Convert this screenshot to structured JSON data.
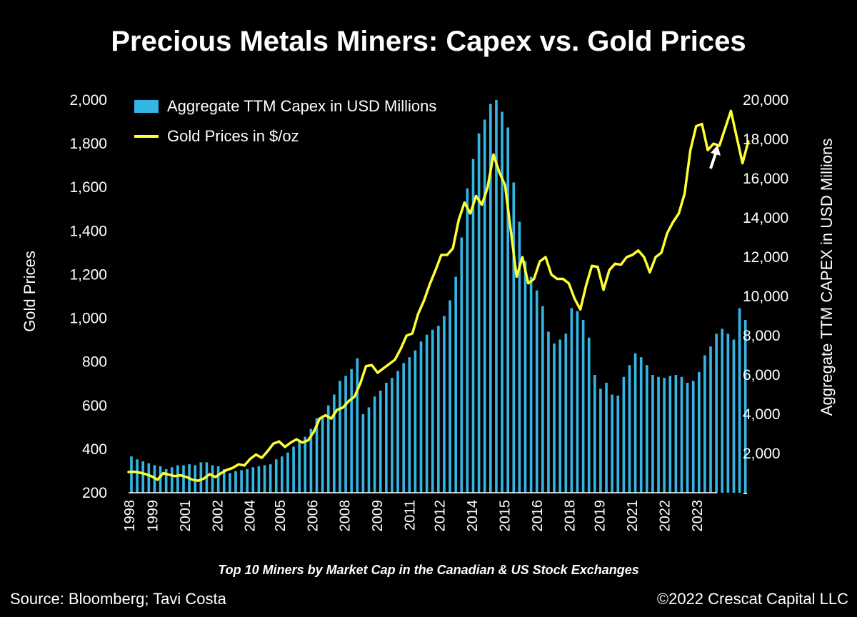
{
  "chart_data": {
    "type": "bar",
    "title": "Precious Metals Miners: Capex vs. Gold Prices",
    "subtitle": "Top 10 Miners by Market Cap in the Canadian & US Stock Exchanges",
    "source": "Source: Bloomberg; Tavi Costa",
    "copyright": "©2022 Crescat Capital LLC",
    "y_left_label": "Gold Prices",
    "y_right_label": "Aggregate TTM CAPEX in USD Millions",
    "y_left_ticks": [
      "2,000",
      "1,800",
      "1,600",
      "1,400",
      "1,200",
      "1,000",
      "800",
      "600",
      "400",
      "200"
    ],
    "y_right_ticks": [
      "20,000",
      "18,000",
      "16,000",
      "14,000",
      "12,000",
      "10,000",
      "8,000",
      "6,000",
      "4,000",
      "2,000",
      "-"
    ],
    "y_left_range": [
      200,
      2000
    ],
    "y_right_range": [
      0,
      20000
    ],
    "x_range": [
      1998,
      2023.4
    ],
    "x_ticks": [
      {
        "label": "1998",
        "t": 1998.0
      },
      {
        "label": "1999",
        "t": 1999.0
      },
      {
        "label": "2001",
        "t": 2000.4
      },
      {
        "label": "2002",
        "t": 2001.8
      },
      {
        "label": "2004",
        "t": 2003.2
      },
      {
        "label": "2005",
        "t": 2004.5
      },
      {
        "label": "2006",
        "t": 2005.9
      },
      {
        "label": "2008",
        "t": 2007.3
      },
      {
        "label": "2009",
        "t": 2008.7
      },
      {
        "label": "2011",
        "t": 2010.1
      },
      {
        "label": "2012",
        "t": 2011.4
      },
      {
        "label": "2014",
        "t": 2012.8
      },
      {
        "label": "2015",
        "t": 2014.2
      },
      {
        "label": "2016",
        "t": 2015.6
      },
      {
        "label": "2018",
        "t": 2017.0
      },
      {
        "label": "2019",
        "t": 2018.3
      },
      {
        "label": "2021",
        "t": 2019.7
      },
      {
        "label": "2022",
        "t": 2021.1
      },
      {
        "label": "2023",
        "t": 2022.5
      }
    ],
    "series": [
      {
        "name": "Aggregate TTM Capex in USD Millions",
        "axis": "right",
        "kind": "bar",
        "color": "#33b5e5",
        "t0": 1998.0,
        "step": 0.25,
        "values": [
          1850,
          1700,
          1600,
          1500,
          1400,
          1350,
          1200,
          1300,
          1400,
          1400,
          1450,
          1400,
          1550,
          1550,
          1400,
          1350,
          1200,
          1000,
          1100,
          1150,
          1200,
          1300,
          1350,
          1400,
          1450,
          1700,
          1850,
          2050,
          2350,
          2600,
          2850,
          3250,
          3800,
          3850,
          4450,
          5000,
          5700,
          5950,
          6300,
          6850,
          4000,
          4350,
          4900,
          5200,
          5600,
          5850,
          6200,
          6600,
          6900,
          7250,
          7700,
          8050,
          8300,
          8500,
          9000,
          9800,
          11000,
          13000,
          15500,
          17000,
          18300,
          19000,
          19800,
          20000,
          19400,
          18600,
          15800,
          13800,
          11800,
          11000,
          10300,
          9500,
          8200,
          7600,
          7800,
          8100,
          9400,
          9250,
          8800,
          7900,
          6000,
          5300,
          5600,
          5000,
          4950,
          5900,
          6500,
          7100,
          6900,
          6500,
          6000,
          5900,
          5850,
          5950,
          6000,
          5900,
          5600,
          5700,
          6150,
          7000,
          7450,
          8100,
          8350,
          8100,
          7800,
          9400,
          8800
        ]
      },
      {
        "name": "Gold Prices in $/oz",
        "axis": "left",
        "kind": "line",
        "color": "#ffff33",
        "t0": 1998.0,
        "step": 0.25,
        "values": [
          295,
          296,
          292,
          285,
          275,
          260,
          290,
          283,
          276,
          280,
          272,
          260,
          255,
          265,
          285,
          272,
          290,
          305,
          314,
          330,
          325,
          355,
          375,
          360,
          390,
          425,
          435,
          410,
          430,
          445,
          430,
          440,
          480,
          540,
          555,
          540,
          580,
          590,
          620,
          640,
          700,
          780,
          785,
          750,
          770,
          790,
          810,
          860,
          920,
          930,
          1020,
          1080,
          1155,
          1220,
          1290,
          1290,
          1320,
          1450,
          1530,
          1480,
          1560,
          1520,
          1600,
          1750,
          1670,
          1610,
          1400,
          1190,
          1280,
          1160,
          1180,
          1260,
          1280,
          1200,
          1180,
          1180,
          1160,
          1090,
          1040,
          1150,
          1240,
          1235,
          1130,
          1220,
          1250,
          1245,
          1280,
          1290,
          1310,
          1280,
          1210,
          1280,
          1300,
          1390,
          1440,
          1480,
          1570,
          1770,
          1880,
          1890,
          1770,
          1800,
          1790,
          1870,
          1950,
          1830,
          1710,
          1810
        ]
      }
    ]
  },
  "legend": {
    "capex": "Aggregate TTM Capex in USD Millions",
    "gold": "Gold Prices in $/oz"
  },
  "arrow_icon": "up-arrow-icon"
}
